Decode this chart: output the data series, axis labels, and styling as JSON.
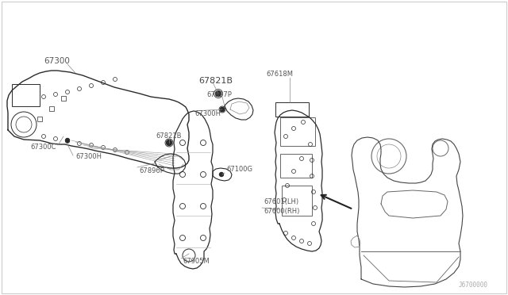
{
  "bg_color": "#ffffff",
  "line_color": "#2a2a2a",
  "label_color": "#555555",
  "fig_width": 6.4,
  "fig_height": 3.72,
  "dpi": 100,
  "watermark": "J6700000",
  "border_color": "#bbbbbb",
  "label_fontsize": 6.0,
  "label_font": "DejaVu Sans",
  "xlim": [
    0,
    640
  ],
  "ylim": [
    0,
    372
  ]
}
